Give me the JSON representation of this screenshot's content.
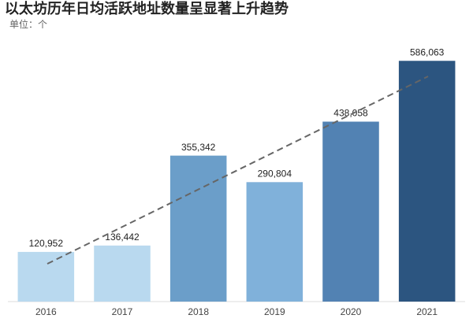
{
  "chart_data": {
    "type": "bar",
    "title": "以太坊历年日均活跃地址数量呈显著上升趋势",
    "subtitle": "单位：个",
    "categories": [
      "2016",
      "2017",
      "2018",
      "2019",
      "2020",
      "2021"
    ],
    "values": [
      120952,
      136442,
      355342,
      290804,
      438058,
      586063
    ],
    "value_labels": [
      "120,952",
      "136,442",
      "355,342",
      "290,804",
      "438,058",
      "586,063"
    ],
    "colors": [
      "#b9d9ef",
      "#b9d9ef",
      "#6b9ec9",
      "#80b1da",
      "#5282b3",
      "#2c5580"
    ],
    "ylim": [
      0,
      600000
    ]
  }
}
